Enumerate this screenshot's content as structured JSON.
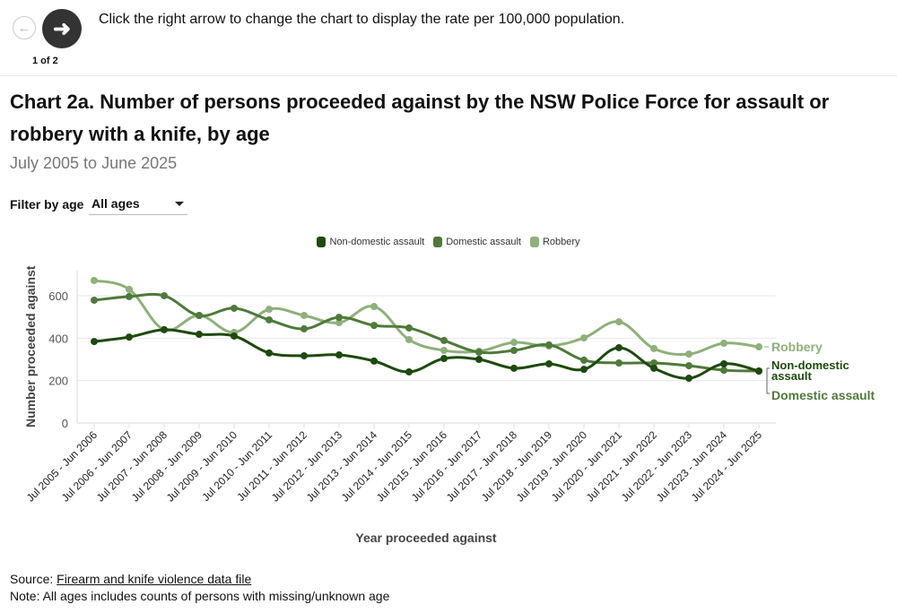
{
  "header": {
    "prev_icon": "arrow-left-icon",
    "next_icon": "arrow-right-icon",
    "pager": "1 of 2",
    "instruction": "Click the right arrow to change the chart to display the rate per 100,000 population."
  },
  "title": "Chart 2a. Number of persons proceeded against by the NSW Police Force for assault or robbery with a knife, by age",
  "subtitle": "July 2005 to June 2025",
  "filter": {
    "label": "Filter by age",
    "selected": "All ages"
  },
  "footer": {
    "source_prefix": "Source: ",
    "source_link": "Firearm and knife violence data file",
    "note": "Note: All ages includes counts of persons with missing/unknown age"
  },
  "chart_data": {
    "type": "line",
    "title": "Chart 2a. Number of persons proceeded against by the NSW Police Force for assault or robbery with a knife, by age",
    "xlabel": "Year proceeded against",
    "ylabel": "Number proceeded against",
    "ylim": [
      0,
      720
    ],
    "yticks": [
      0,
      200,
      400,
      600
    ],
    "grid": true,
    "legend_position": "top",
    "categories": [
      "Jul 2005 - Jun 2006",
      "Jul 2006 - Jun 2007",
      "Jul 2007 - Jun 2008",
      "Jul 2008 - Jun 2009",
      "Jul 2009 - Jun 2010",
      "Jul 2010 - Jun 2011",
      "Jul 2011 - Jun 2012",
      "Jul 2012 - Jun 2013",
      "Jul 2013 - Jun 2014",
      "Jul 2014 - Jun 2015",
      "Jul 2015 - Jun 2016",
      "Jul 2016 - Jun 2017",
      "Jul 2017 - Jun 2018",
      "Jul 2018 - Jun 2019",
      "Jul 2019 - Jun 2020",
      "Jul 2020 - Jun 2021",
      "Jul 2021 - Jun 2022",
      "Jul 2022 - Jun 2023",
      "Jul 2023 - Jun 2024",
      "Jul 2024 - Jun 2025"
    ],
    "series": [
      {
        "name": "Non-domestic assault",
        "end_label": "Non-domestic assault",
        "color": "#1e4a0e",
        "values": [
          384,
          405,
          440,
          418,
          410,
          330,
          317,
          321,
          292,
          241,
          304,
          300,
          258,
          279,
          253,
          355,
          258,
          211,
          279,
          245
        ]
      },
      {
        "name": "Domestic assault",
        "end_label": "Domestic assault",
        "color": "#4f7a3a",
        "values": [
          579,
          596,
          600,
          507,
          541,
          486,
          444,
          498,
          460,
          448,
          389,
          334,
          342,
          368,
          296,
          283,
          283,
          270,
          249,
          245
        ]
      },
      {
        "name": "Robbery",
        "end_label": "Robbery",
        "color": "#8fb07a",
        "values": [
          672,
          630,
          440,
          507,
          427,
          536,
          507,
          473,
          549,
          393,
          342,
          338,
          380,
          363,
          401,
          477,
          351,
          325,
          376,
          359
        ]
      }
    ]
  }
}
